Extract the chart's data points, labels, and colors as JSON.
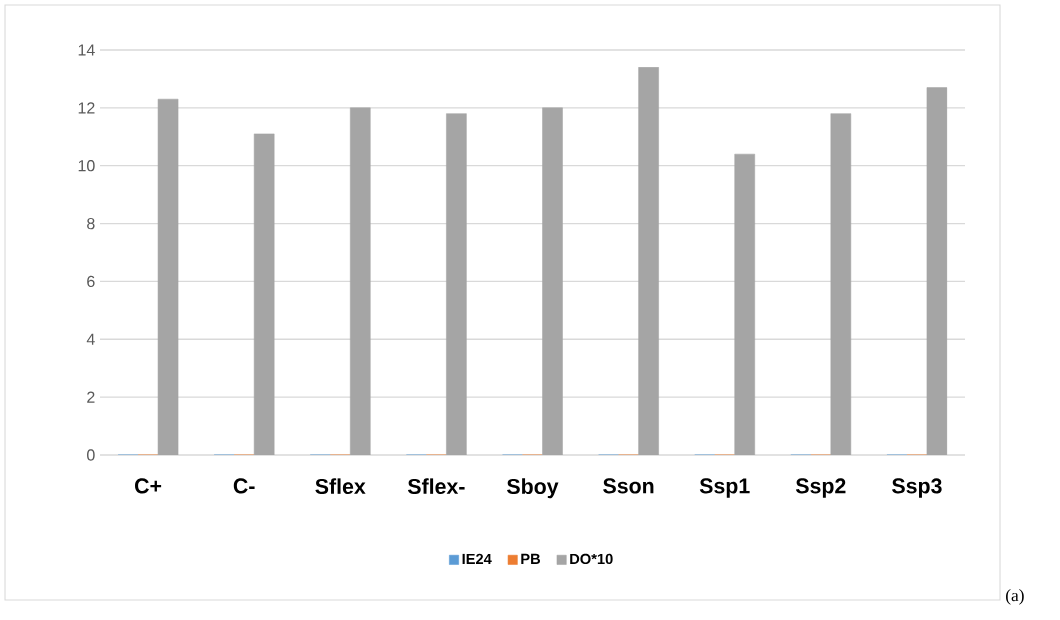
{
  "chart_data": {
    "type": "bar",
    "categories": [
      "C+",
      "C-",
      "Sflex",
      "Sflex-",
      "Sboy",
      "Sson",
      "Ssp1",
      "Ssp2",
      "Ssp3"
    ],
    "series": [
      {
        "name": "IE24",
        "color": "#5b9bd5",
        "values": [
          0,
          0,
          0,
          0,
          0,
          0,
          0,
          0,
          0
        ]
      },
      {
        "name": "PB",
        "color": "#ed7d31",
        "values": [
          0,
          0,
          0,
          0,
          0,
          0,
          0,
          0,
          0
        ]
      },
      {
        "name": "DO*10",
        "color": "#a5a5a5",
        "values": [
          12.3,
          11.1,
          12.0,
          11.8,
          12.0,
          13.4,
          10.4,
          11.8,
          12.7
        ]
      }
    ],
    "ylim": [
      0,
      14
    ],
    "yticks": [
      0,
      2,
      4,
      6,
      8,
      10,
      12,
      14
    ],
    "grid": "y",
    "legend": "bottom",
    "annotations": [
      "(a)"
    ]
  }
}
